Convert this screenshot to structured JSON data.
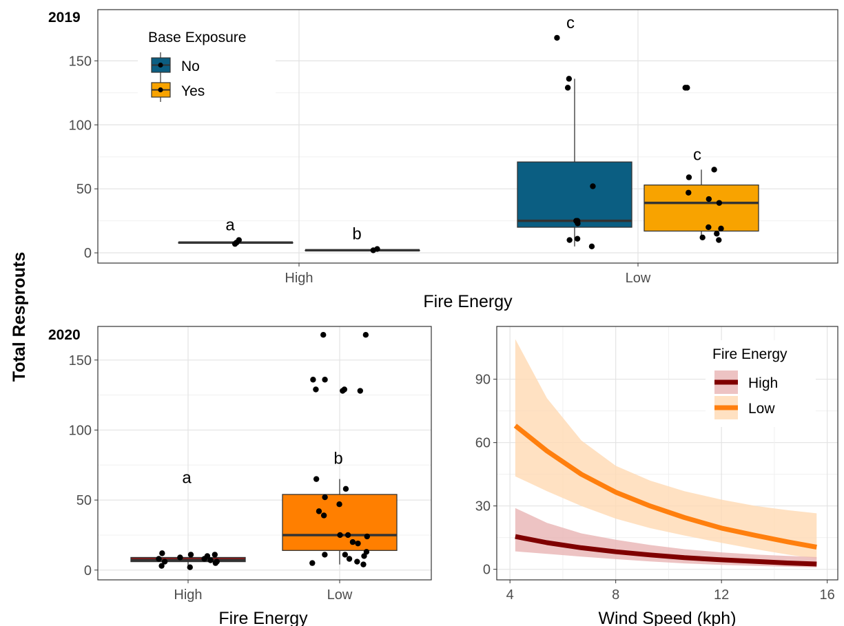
{
  "y_axis_title": "Total Resprouts",
  "colors": {
    "no": "#0b5e82",
    "yes": "#f8a300",
    "high_box": "#8b1a1a",
    "low_box": "#ff7f00",
    "high_line": "#7f0000",
    "low_line": "#ff7f0e",
    "high_ribbon": "#e8b4b4",
    "low_ribbon": "#ffd9b3"
  },
  "chart_data": [
    {
      "type": "box",
      "panel_label": "2019",
      "xlabel": "Fire Energy",
      "ylabel": "Total Resprouts",
      "categories": [
        "High",
        "Low"
      ],
      "yticks": [
        0,
        50,
        100,
        150
      ],
      "ylim": [
        -8,
        190
      ],
      "legend": {
        "title": "Base Exposure",
        "position": "top-left",
        "entries": [
          "No",
          "Yes"
        ]
      },
      "series": [
        {
          "name": "No",
          "boxes": [
            {
              "category": "High",
              "q1": 8,
              "median": 8,
              "q3": 8,
              "whisker_low": 8,
              "whisker_high": 8,
              "letter": "a",
              "points": [
                10,
                8,
                7
              ]
            },
            {
              "category": "Low",
              "q1": 20,
              "median": 25,
              "q3": 71,
              "whisker_low": 5,
              "whisker_high": 136,
              "letter": "c",
              "points": [
                168,
                136,
                129,
                52,
                25,
                25,
                24,
                23,
                11,
                10,
                5
              ]
            }
          ]
        },
        {
          "name": "Yes",
          "boxes": [
            {
              "category": "High",
              "q1": 2,
              "median": 2,
              "q3": 2,
              "whisker_low": 2,
              "whisker_high": 2,
              "letter": "b",
              "points": [
                3,
                2
              ]
            },
            {
              "category": "Low",
              "q1": 17,
              "median": 39,
              "q3": 53,
              "whisker_low": 10,
              "whisker_high": 65,
              "letter": "c",
              "points": [
                129,
                129,
                65,
                59,
                47,
                42,
                39,
                20,
                19,
                15,
                12,
                10
              ]
            }
          ]
        }
      ]
    },
    {
      "type": "box",
      "panel_label": "2020",
      "xlabel": "Fire Energy",
      "categories": [
        "High",
        "Low"
      ],
      "yticks": [
        0,
        50,
        100,
        150
      ],
      "ylim": [
        -7,
        174
      ],
      "boxes": [
        {
          "category": "High",
          "q1": 6,
          "median": 7,
          "q3": 9,
          "whisker_low": 2,
          "whisker_high": 9,
          "letter": "a",
          "points": [
            12,
            11,
            11,
            10,
            9,
            8,
            8,
            7,
            6,
            6,
            5,
            3,
            2
          ]
        },
        {
          "category": "Low",
          "q1": 14,
          "median": 25,
          "q3": 54,
          "whisker_low": 4,
          "whisker_high": 65,
          "letter": "b",
          "points": [
            168,
            168,
            136,
            136,
            129,
            129,
            128,
            128,
            65,
            58,
            52,
            47,
            42,
            39,
            25,
            25,
            24,
            20,
            19,
            13,
            11,
            11,
            10,
            8,
            6,
            5,
            4
          ]
        }
      ]
    },
    {
      "type": "line",
      "xlabel": "Wind Speed (kph)",
      "xticks": [
        4,
        8,
        12,
        16
      ],
      "yticks": [
        0,
        30,
        60,
        90
      ],
      "xlim": [
        3.5,
        16.4
      ],
      "ylim": [
        -5,
        115
      ],
      "legend": {
        "title": "Fire Energy",
        "position": "top-right",
        "entries": [
          "High",
          "Low"
        ]
      },
      "x": [
        4.2,
        5.4,
        6.7,
        8.0,
        9.3,
        10.6,
        12.0,
        13.3,
        14.5,
        15.6
      ],
      "series": [
        {
          "name": "High",
          "values": [
            15.5,
            12.6,
            10.2,
            8.3,
            6.8,
            5.5,
            4.5,
            3.7,
            3.0,
            2.5
          ],
          "lower": [
            8.5,
            7.3,
            6.0,
            4.8,
            3.7,
            2.8,
            2.1,
            1.6,
            1.2,
            0.9
          ],
          "upper": [
            29,
            22,
            17,
            14,
            11.5,
            9.5,
            8,
            7,
            6.3,
            5.8
          ]
        },
        {
          "name": "Low",
          "values": [
            68,
            56,
            45,
            36.5,
            30,
            24.5,
            19.5,
            16,
            13,
            10.5
          ],
          "lower": [
            44,
            37,
            30,
            24,
            19.5,
            16,
            12.5,
            9.5,
            7,
            5
          ],
          "upper": [
            109,
            81,
            61,
            49,
            42,
            37,
            33,
            30,
            28,
            26.5
          ]
        }
      ]
    }
  ]
}
